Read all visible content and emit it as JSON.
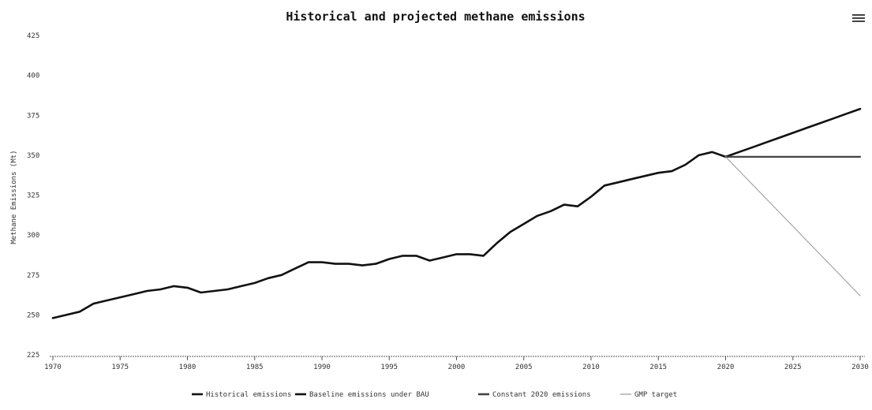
{
  "menu": {
    "icon": "hamburger-menu-icon"
  },
  "chart_data": {
    "type": "line",
    "title": "Historical and projected methane emissions",
    "ylabel": "Methane Emissions (Mt)",
    "xlabel": "",
    "xlim": [
      1970,
      2030
    ],
    "ylim": [
      225,
      425
    ],
    "y_ticks": [
      225,
      250,
      275,
      300,
      325,
      350,
      375,
      400,
      425
    ],
    "x_ticks": [
      1970,
      1975,
      1980,
      1985,
      1990,
      1995,
      2000,
      2005,
      2010,
      2015,
      2020,
      2025,
      2030
    ],
    "grid": false,
    "legend_position": "bottom",
    "series": [
      {
        "name": "Historical emissions",
        "color": "#111111",
        "x": [
          1970,
          1971,
          1972,
          1973,
          1974,
          1975,
          1976,
          1977,
          1978,
          1979,
          1980,
          1981,
          1982,
          1983,
          1984,
          1985,
          1986,
          1987,
          1988,
          1989,
          1990,
          1991,
          1992,
          1993,
          1994,
          1995,
          1996,
          1997,
          1998,
          1999,
          2000,
          2001,
          2002,
          2003,
          2004,
          2005,
          2006,
          2007,
          2008,
          2009,
          2010,
          2011,
          2012,
          2013,
          2014,
          2015,
          2016,
          2017,
          2018,
          2019,
          2020
        ],
        "values": [
          248,
          250,
          252,
          257,
          259,
          261,
          263,
          265,
          266,
          268,
          267,
          264,
          265,
          266,
          268,
          270,
          273,
          275,
          279,
          283,
          283,
          282,
          282,
          281,
          282,
          285,
          287,
          287,
          284,
          286,
          288,
          288,
          287,
          295,
          302,
          307,
          312,
          315,
          319,
          318,
          324,
          331,
          333,
          335,
          337,
          339,
          340,
          344,
          350,
          352,
          349
        ]
      },
      {
        "name": "Baseline emissions under BAU",
        "color": "#111111",
        "x": [
          2020,
          2021,
          2022,
          2023,
          2024,
          2025,
          2026,
          2027,
          2028,
          2029,
          2030
        ],
        "values": [
          349,
          352,
          355,
          358,
          361,
          364,
          367,
          370,
          373,
          376,
          379
        ]
      },
      {
        "name": "Constant 2020 emissions",
        "color": "#444444",
        "x": [
          2020,
          2030
        ],
        "values": [
          349,
          349
        ]
      },
      {
        "name": "GMP target",
        "color": "#9a9a9a",
        "x": [
          2020,
          2030
        ],
        "values": [
          349,
          262
        ]
      }
    ]
  }
}
